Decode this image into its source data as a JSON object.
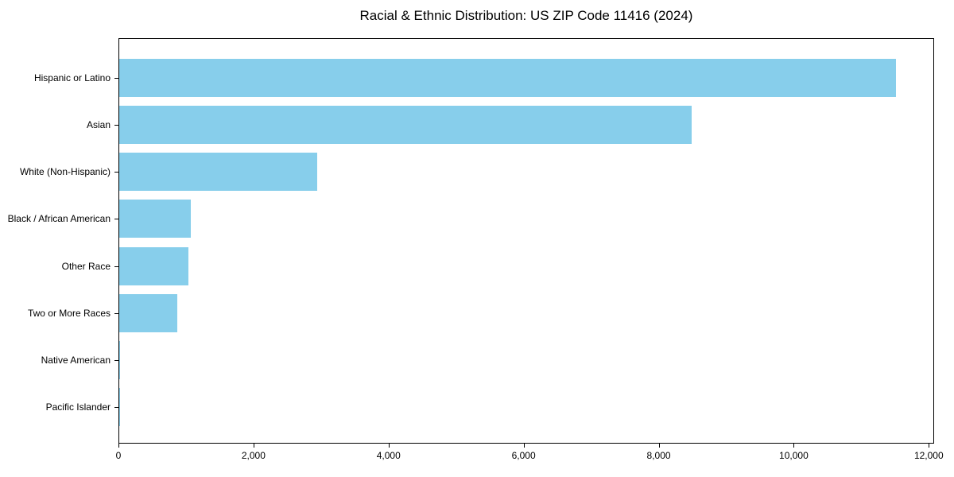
{
  "title": "Racial & Ethnic Distribution: US ZIP Code 11416 (2024)",
  "chart_data": {
    "type": "bar",
    "orientation": "horizontal",
    "title": "Racial & Ethnic Distribution: US ZIP Code 11416 (2024)",
    "categories": [
      "Hispanic or Latino",
      "Asian",
      "White (Non-Hispanic)",
      "Black / African American",
      "Other Race",
      "Two or More Races",
      "Native American",
      "Pacific Islander"
    ],
    "values": [
      11500,
      8480,
      2930,
      1060,
      1020,
      860,
      15,
      5
    ],
    "xlabel": "",
    "ylabel": "",
    "xlim": [
      0,
      12000
    ],
    "x_ticks": [
      0,
      2000,
      4000,
      6000,
      8000,
      10000,
      12000
    ],
    "x_tick_labels": [
      "0",
      "2,000",
      "4,000",
      "6,000",
      "8,000",
      "10,000",
      "12,000"
    ],
    "bar_color": "#87CEEB",
    "axis_color": "#000000",
    "background": "#FFFFFF",
    "grid": false,
    "legend": null
  }
}
